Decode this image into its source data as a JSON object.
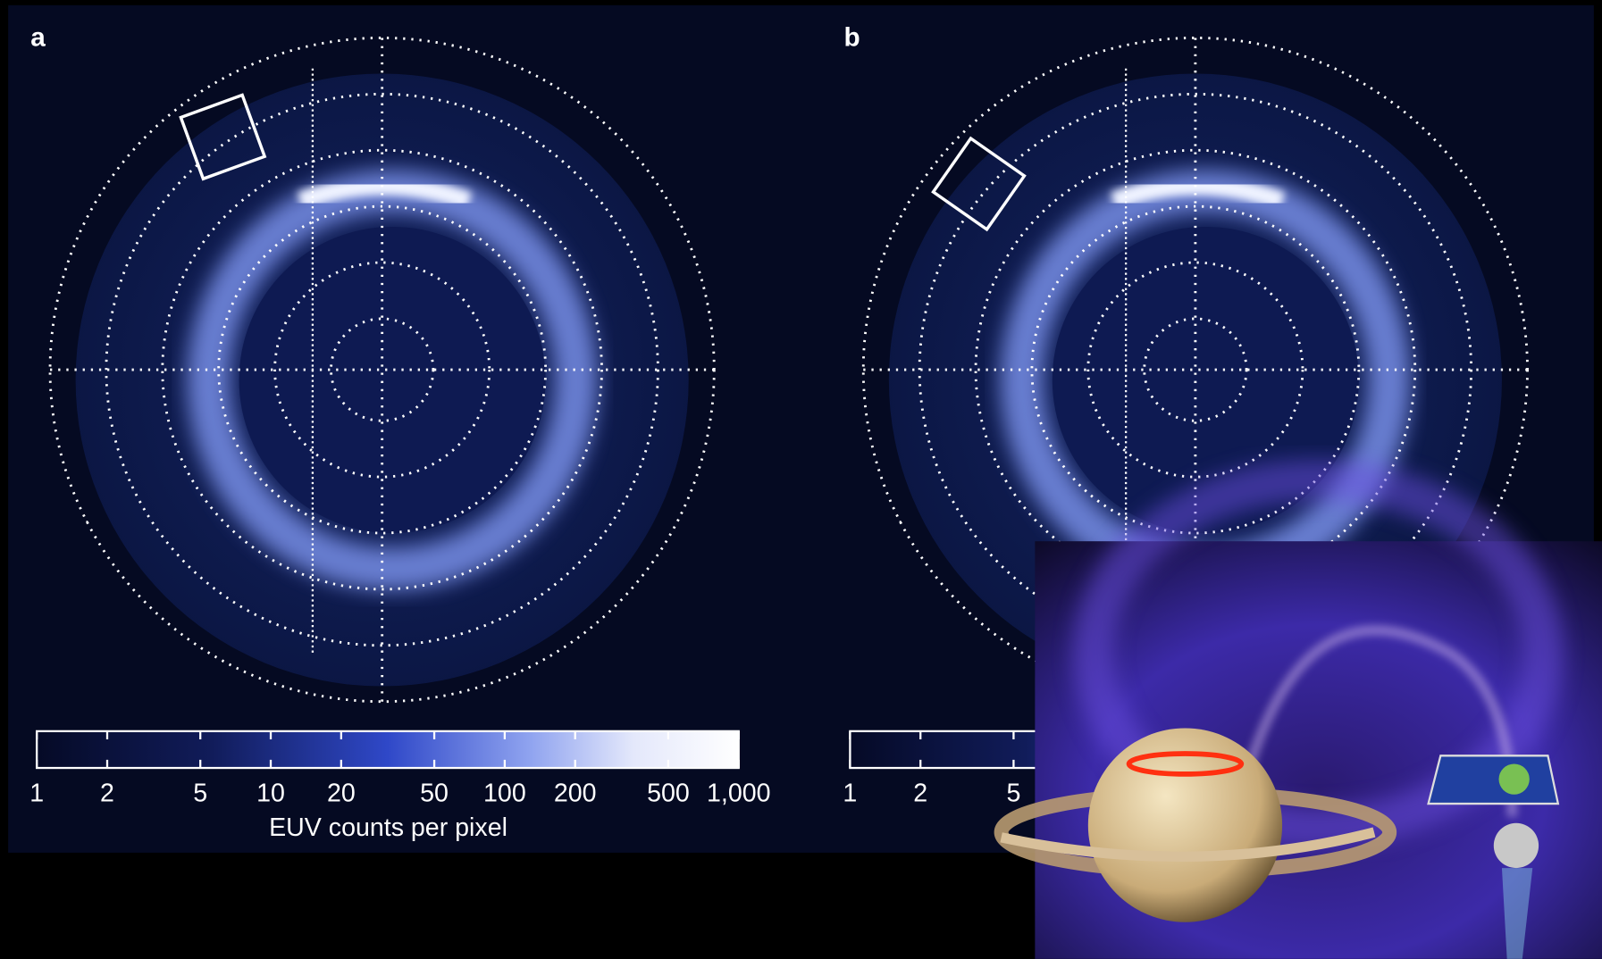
{
  "panels": [
    {
      "label": "a",
      "colorbar": {
        "scale": "log",
        "lim": [
          1,
          1000
        ],
        "ticks": [
          1,
          2,
          5,
          10,
          20,
          50,
          100,
          200,
          500,
          {
            "value": 1000,
            "label": "1,000"
          }
        ],
        "label": "EUV counts per pixel"
      }
    },
    {
      "label": "b",
      "colorbar": {
        "scale": "log",
        "lim": [
          1,
          1000
        ],
        "ticks": [
          1,
          2,
          5
        ]
      }
    }
  ]
}
